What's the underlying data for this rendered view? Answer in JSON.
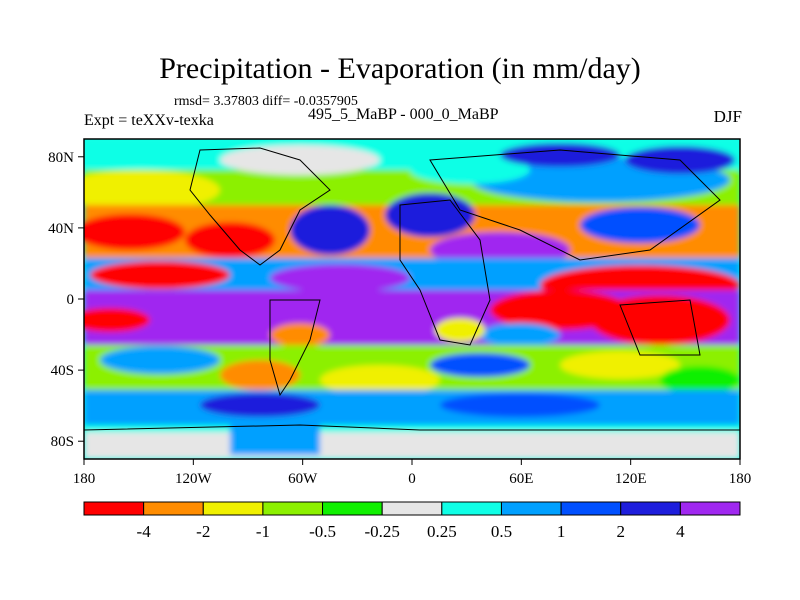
{
  "title": "Precipitation - Evaporation (in mm/day)",
  "stats": "rmsd= 3.37803 diff= -0.0357905",
  "experiment": "Expt = teXXv-texka",
  "period": "495_5_MaBP - 000_0_MaBP",
  "season": "DJF",
  "axes": {
    "x_ticks": [
      "180",
      "120W",
      "60W",
      "0",
      "60E",
      "120E",
      "180"
    ],
    "y_ticks": [
      "80N",
      "40N",
      "0",
      "40S",
      "80S"
    ]
  },
  "colorbar": {
    "colors": [
      "#ff0000",
      "#ff8c00",
      "#f0f000",
      "#8cf000",
      "#10f000",
      "#e6e6e6",
      "#10ffe6",
      "#00a0ff",
      "#0050ff",
      "#1e1edc",
      "#a028f0"
    ],
    "labels": [
      "-4",
      "-2",
      "-1",
      "-0.5",
      "-0.25",
      "0.25",
      "0.5",
      "1",
      "2",
      "4"
    ]
  }
}
